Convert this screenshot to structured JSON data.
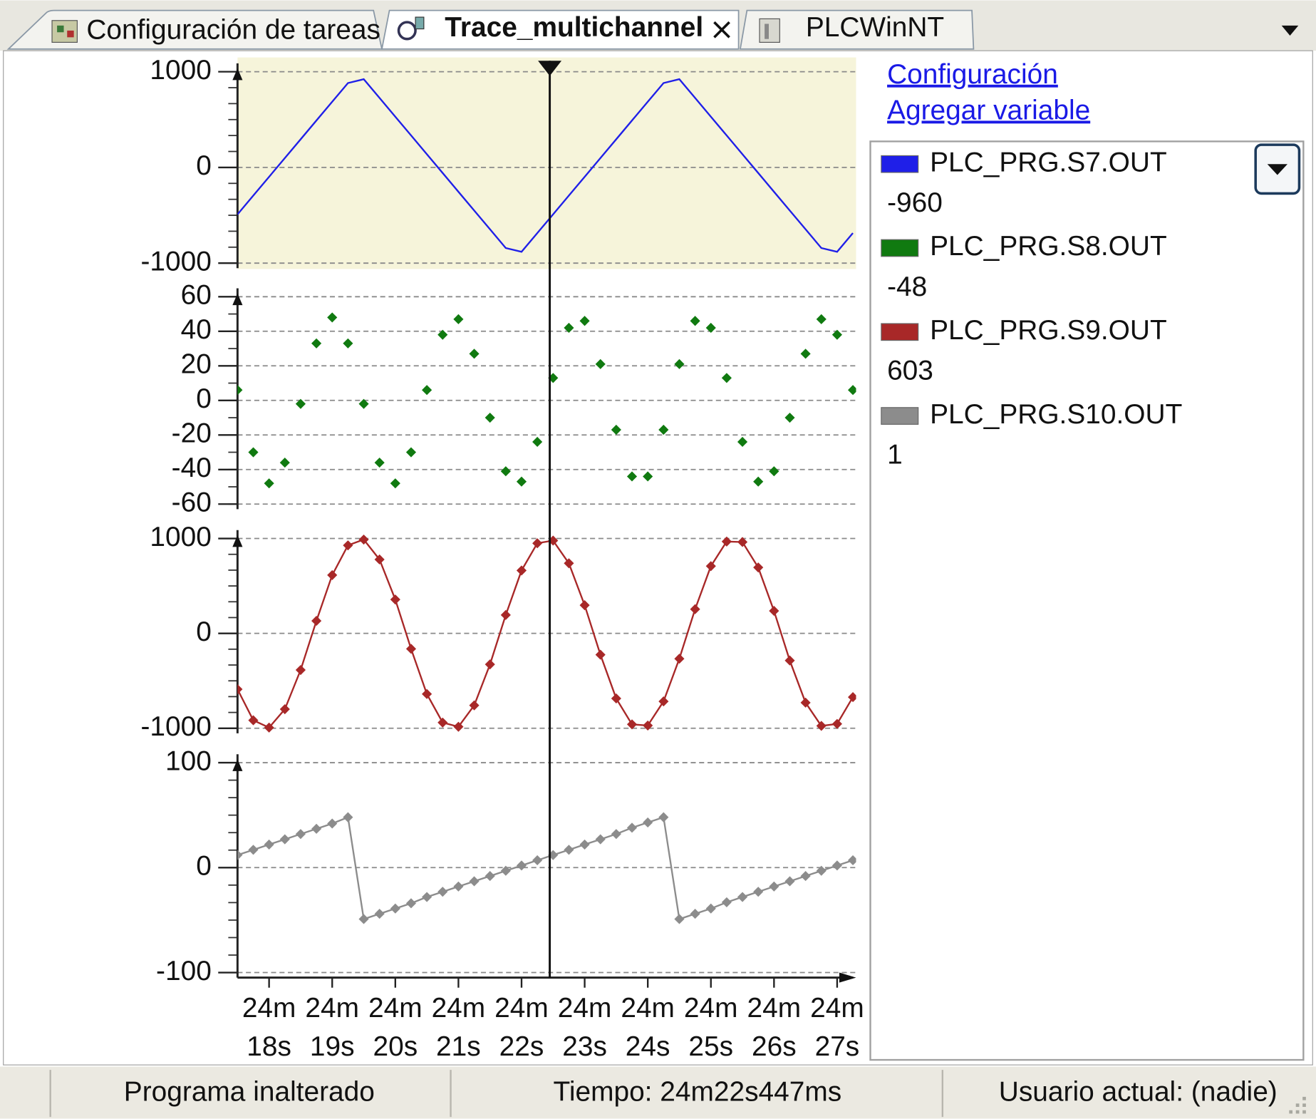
{
  "tabs": [
    {
      "label": "Configuración de tareas",
      "active": false
    },
    {
      "label": "Trace_multichannel",
      "active": true
    },
    {
      "label": "PLCWinNT",
      "active": false
    }
  ],
  "links": [
    "Configuración",
    "Agregar variable"
  ],
  "cursor_x": 22.447,
  "chart_data": [
    {
      "type": "line",
      "background": "#f6f4da",
      "grid": true,
      "x": [
        17.5,
        17.75,
        18,
        18.25,
        18.5,
        18.75,
        19,
        19.25,
        19.5,
        19.75,
        20,
        20.25,
        20.5,
        20.75,
        21,
        21.25,
        21.5,
        21.75,
        22,
        22.25,
        22.5,
        22.75,
        23,
        23.25,
        23.5,
        23.75,
        24,
        24.25,
        24.5,
        24.75,
        25,
        25.25,
        25.5,
        25.75,
        26,
        26.25,
        26.5,
        26.75,
        27,
        27.25
      ],
      "xlim": [
        17.5,
        27.3
      ],
      "ylim": [
        -1000,
        1000
      ],
      "yticks": [
        -1000,
        0,
        1000
      ],
      "series": [
        {
          "name": "PLC_PRG.S7.OUT",
          "color": "#1f1fe8",
          "current": -960,
          "markers": false,
          "values": [
            -490,
            -294,
            -98,
            98,
            294,
            490,
            686,
            882,
            922,
            726,
            530,
            334,
            138,
            -58,
            -254,
            -450,
            -646,
            -842,
            -882,
            -686,
            -490,
            -294,
            -98,
            98,
            294,
            490,
            686,
            882,
            922,
            726,
            530,
            334,
            138,
            -58,
            -254,
            -450,
            -646,
            -842,
            -882,
            -686
          ]
        }
      ]
    },
    {
      "type": "scatter",
      "grid": true,
      "x": [
        17.5,
        17.75,
        18,
        18.25,
        18.5,
        18.75,
        19,
        19.25,
        19.5,
        19.75,
        20,
        20.25,
        20.5,
        20.75,
        21,
        21.25,
        21.5,
        21.75,
        22,
        22.25,
        22.5,
        22.75,
        23,
        23.25,
        23.5,
        23.75,
        24,
        24.25,
        24.5,
        24.75,
        25,
        25.25,
        25.5,
        25.75,
        26,
        26.25,
        26.5,
        26.75,
        27,
        27.25
      ],
      "xlim": [
        17.5,
        27.3
      ],
      "ylim": [
        -60,
        60
      ],
      "yticks": [
        -60,
        -40,
        -20,
        0,
        20,
        40,
        60
      ],
      "series": [
        {
          "name": "PLC_PRG.S8.OUT",
          "color": "#107a10",
          "current": -48,
          "markers": true,
          "values": [
            6,
            -30,
            -48,
            -36,
            -2,
            33,
            48,
            33,
            -2,
            -36,
            -48,
            -30,
            6,
            38,
            47,
            27,
            -10,
            -41,
            -47,
            -24,
            13,
            42,
            46,
            21,
            -17,
            -44,
            -44,
            -17,
            21,
            46,
            42,
            13,
            -24,
            -47,
            -41,
            -10,
            27,
            47,
            38,
            6
          ]
        }
      ]
    },
    {
      "type": "line",
      "grid": true,
      "x": [
        17.5,
        17.75,
        18,
        18.25,
        18.5,
        18.75,
        19,
        19.25,
        19.5,
        19.75,
        20,
        20.25,
        20.5,
        20.75,
        21,
        21.25,
        21.5,
        21.75,
        22,
        22.25,
        22.5,
        22.75,
        23,
        23.25,
        23.5,
        23.75,
        24,
        24.25,
        24.5,
        24.75,
        25,
        25.25,
        25.5,
        25.75,
        26,
        26.25,
        26.5,
        26.75,
        27,
        27.25
      ],
      "xlim": [
        17.5,
        27.3
      ],
      "ylim": [
        -1000,
        1000
      ],
      "yticks": [
        -1000,
        0,
        1000
      ],
      "series": [
        {
          "name": "PLC_PRG.S9.OUT",
          "color": "#a82828",
          "current": 603,
          "markers": true,
          "values": [
            -589,
            -916,
            -993,
            -799,
            -386,
            132,
            614,
            928,
            989,
            779,
            357,
            -163,
            -639,
            -940,
            -984,
            -759,
            -327,
            194,
            663,
            950,
            978,
            739,
            297,
            -225,
            -686,
            -959,
            -971,
            -717,
            -267,
            255,
            709,
            968,
            963,
            695,
            237,
            -286,
            -730,
            -975,
            -954,
            -672
          ]
        }
      ]
    },
    {
      "type": "line",
      "grid": true,
      "x": [
        17.5,
        17.75,
        18,
        18.25,
        18.5,
        18.75,
        19,
        19.25,
        19.5,
        19.75,
        20,
        20.25,
        20.5,
        20.75,
        21,
        21.25,
        21.5,
        21.75,
        22,
        22.25,
        22.5,
        22.75,
        23,
        23.25,
        23.5,
        23.75,
        24,
        24.25,
        24.5,
        24.75,
        25,
        25.25,
        25.5,
        25.75,
        26,
        26.25,
        26.5,
        26.75,
        27,
        27.25
      ],
      "xlim": [
        17.5,
        27.3
      ],
      "ylim": [
        -100,
        100
      ],
      "yticks": [
        -100,
        0,
        100
      ],
      "xticks": [
        {
          "value": 18,
          "label": "24m\n18s"
        },
        {
          "value": 19,
          "label": "24m\n19s"
        },
        {
          "value": 20,
          "label": "24m\n20s"
        },
        {
          "value": 21,
          "label": "24m\n21s"
        },
        {
          "value": 22,
          "label": "24m\n22s"
        },
        {
          "value": 23,
          "label": "24m\n23s"
        },
        {
          "value": 24,
          "label": "24m\n24s"
        },
        {
          "value": 25,
          "label": "24m\n25s"
        },
        {
          "value": 26,
          "label": "24m\n26s"
        },
        {
          "value": 27,
          "label": "24m\n27s"
        }
      ],
      "series": [
        {
          "name": "PLC_PRG.S10.OUT",
          "color": "#8c8c8c",
          "current": 1,
          "markers": true,
          "values": [
            12,
            17,
            22,
            27,
            32,
            37,
            42,
            48,
            -49,
            -44,
            -39,
            -34,
            -28,
            -23,
            -18,
            -13,
            -8,
            -3,
            2,
            7,
            12,
            17,
            22,
            27,
            32,
            38,
            43,
            48,
            -49,
            -44,
            -39,
            -33,
            -28,
            -23,
            -18,
            -13,
            -8,
            -3,
            2,
            7
          ]
        }
      ]
    }
  ],
  "status_bar": [
    "Programa inalterado",
    "Tiempo: 24m22s447ms",
    "Usuario actual: (nadie)"
  ]
}
